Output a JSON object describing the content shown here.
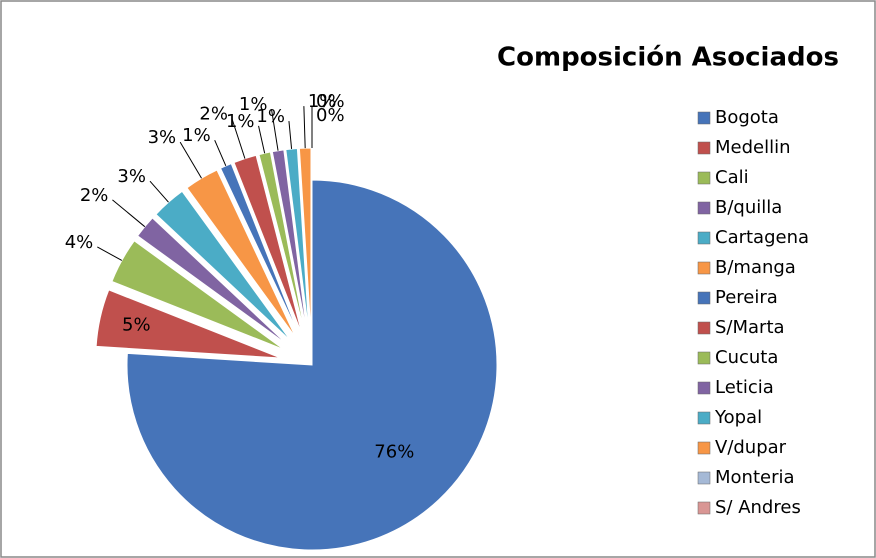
{
  "chart_data": {
    "type": "pie",
    "title": "Composición Asociados",
    "categories": [
      "Bogota",
      "Medellin",
      "Cali",
      "B/quilla",
      "Cartagena",
      "B/manga",
      "Pereira",
      "S/Marta",
      "Cucuta",
      "Leticia",
      "Yopal",
      "V/dupar",
      "Monteria",
      "S/ Andres"
    ],
    "values": [
      76,
      5,
      4,
      2,
      3,
      3,
      1,
      2,
      1,
      1,
      1,
      1,
      0,
      0
    ],
    "value_labels": [
      "76%",
      "5%",
      "4%",
      "2%",
      "3%",
      "3%",
      "1%",
      "2%",
      "1%",
      "1%",
      "1%",
      "1%",
      "0%",
      "0%"
    ],
    "colors": [
      "#4674b9",
      "#c0504d",
      "#9bbb59",
      "#8064a2",
      "#4bacc6",
      "#f79646",
      "#4674b9",
      "#c0504d",
      "#9bbb59",
      "#8064a2",
      "#4bacc6",
      "#f79646",
      "#a5b9d6",
      "#d99694"
    ],
    "legend": "right"
  }
}
